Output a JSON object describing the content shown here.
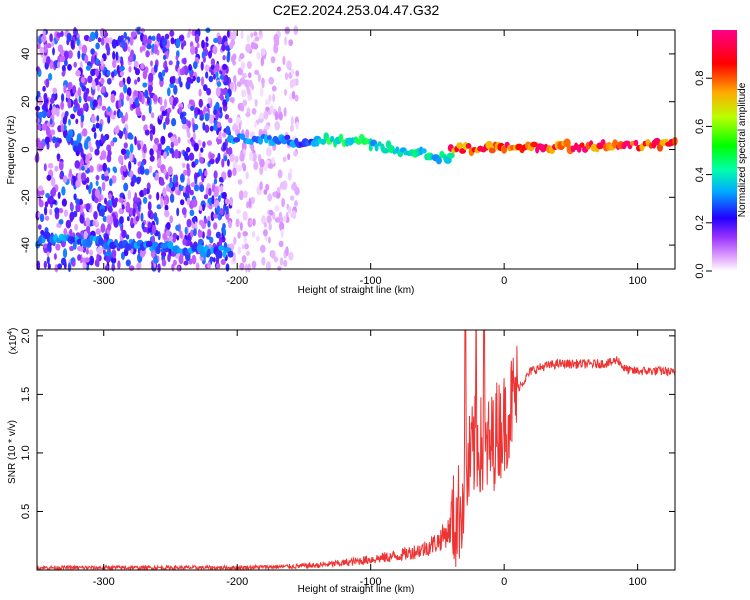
{
  "title": "C2E2.2024.253.04.47.G32",
  "chart_data": [
    {
      "type": "heatmap",
      "xlabel": "Height of straight line (km)",
      "ylabel": "Frequency (Hz)",
      "xlim": [
        -350,
        128
      ],
      "ylim": [
        -50,
        50
      ],
      "x_ticks": [
        -300,
        -200,
        -100,
        0,
        100
      ],
      "y_ticks": [
        -40,
        -20,
        0,
        20,
        40
      ],
      "colorbar": {
        "label": "Normalized spectral amplitude",
        "range": [
          0,
          1
        ],
        "ticks": [
          "0.0",
          "0.2",
          "0.4",
          "0.6",
          "0.8"
        ],
        "colors": [
          "#ffffff",
          "#cc66ff",
          "#4400ff",
          "#00bbff",
          "#00ff66",
          "#bbff00",
          "#ffaa00",
          "#ff0000",
          "#ff0077"
        ]
      },
      "noise_region": {
        "x": [
          -350,
          -205
        ],
        "y": [
          -50,
          50
        ],
        "level": 0.15
      },
      "sparse_noise_region": {
        "x": [
          -205,
          -155
        ],
        "y": [
          -50,
          50
        ],
        "level": 0.06
      },
      "features": [
        {
          "x": [
            -205,
            -140
          ],
          "y": [
            5,
            3
          ],
          "level": 0.35
        },
        {
          "x": [
            -140,
            -100
          ],
          "y": [
            4,
            4
          ],
          "level": 0.5
        },
        {
          "x": [
            -100,
            -40
          ],
          "y": [
            2,
            -4
          ],
          "level": 0.45
        },
        {
          "x": [
            -40,
            0
          ],
          "y": [
            0,
            1
          ],
          "level": 0.9
        },
        {
          "x": [
            0,
            128
          ],
          "y": [
            1,
            2
          ],
          "level": 0.95
        },
        {
          "x": [
            -345,
            -205
          ],
          "y": [
            -37,
            -43
          ],
          "level": 0.35
        }
      ]
    },
    {
      "type": "line",
      "xlabel": "Height of straight line (km)",
      "ylabel": "SNR (10 * v/v)",
      "y_multiplier": "(x10",
      "y_multiplier_exp": "4",
      "xlim": [
        -350,
        128
      ],
      "ylim": [
        0,
        2.05
      ],
      "x_ticks": [
        -300,
        -200,
        -100,
        0,
        100
      ],
      "y_ticks": [
        "0.5",
        "1.0",
        "1.5",
        "2.0"
      ],
      "color": "#ee3333",
      "series": [
        {
          "x": [
            -350,
            -300,
            -250,
            -200,
            -160,
            -140,
            -120,
            -100,
            -80,
            -60,
            -50,
            -40,
            -35,
            -30,
            -25,
            -20,
            -15,
            -10,
            -5,
            0,
            5,
            10,
            15,
            20,
            30,
            40,
            50,
            60,
            70,
            80,
            85,
            90,
            95,
            100,
            110,
            120,
            128
          ],
          "values": [
            0.02,
            0.02,
            0.02,
            0.02,
            0.03,
            0.04,
            0.06,
            0.09,
            0.12,
            0.18,
            0.24,
            0.35,
            0.45,
            0.65,
            0.95,
            1.1,
            1.0,
            1.05,
            1.2,
            1.25,
            1.4,
            1.55,
            1.62,
            1.7,
            1.74,
            1.76,
            1.76,
            1.76,
            1.76,
            1.77,
            1.8,
            1.72,
            1.7,
            1.7,
            1.7,
            1.7,
            1.68
          ]
        }
      ],
      "peaks": [
        {
          "x": -29,
          "y": 2.05
        },
        {
          "x": -21,
          "y": 2.05
        },
        {
          "x": -15,
          "y": 2.05
        }
      ]
    }
  ]
}
